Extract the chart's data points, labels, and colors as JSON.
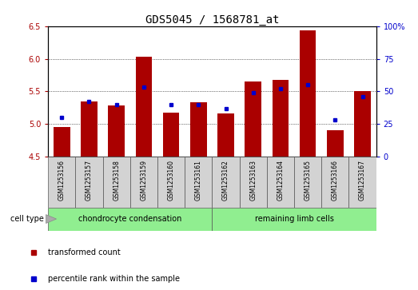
{
  "title": "GDS5045 / 1568781_at",
  "samples": [
    "GSM1253156",
    "GSM1253157",
    "GSM1253158",
    "GSM1253159",
    "GSM1253160",
    "GSM1253161",
    "GSM1253162",
    "GSM1253163",
    "GSM1253164",
    "GSM1253165",
    "GSM1253166",
    "GSM1253167"
  ],
  "red_values": [
    4.95,
    5.35,
    5.28,
    6.03,
    5.17,
    5.33,
    5.16,
    5.65,
    5.68,
    6.43,
    4.91,
    5.5
  ],
  "blue_values": [
    30,
    42,
    40,
    53,
    40,
    40,
    37,
    49,
    52,
    55,
    28,
    46
  ],
  "ylim_left": [
    4.5,
    6.5
  ],
  "ylim_right": [
    0,
    100
  ],
  "yticks_left": [
    4.5,
    5.0,
    5.5,
    6.0,
    6.5
  ],
  "yticks_right": [
    0,
    25,
    50,
    75,
    100
  ],
  "red_color": "#aa0000",
  "blue_color": "#0000cc",
  "bar_bottom": 4.5,
  "group1_label": "chondrocyte condensation",
  "group2_label": "remaining limb cells",
  "cell_type_label": "cell type",
  "group1_indices": [
    0,
    1,
    2,
    3,
    4,
    5
  ],
  "group2_indices": [
    6,
    7,
    8,
    9,
    10,
    11
  ],
  "legend_red": "transformed count",
  "legend_blue": "percentile rank within the sample",
  "bg_color": "#d3d3d3",
  "group_bg": "#90ee90",
  "title_fontsize": 10,
  "tick_fontsize": 7,
  "label_fontsize": 7.5,
  "grid_lines": [
    5.0,
    5.5,
    6.0
  ],
  "bar_width": 0.6
}
